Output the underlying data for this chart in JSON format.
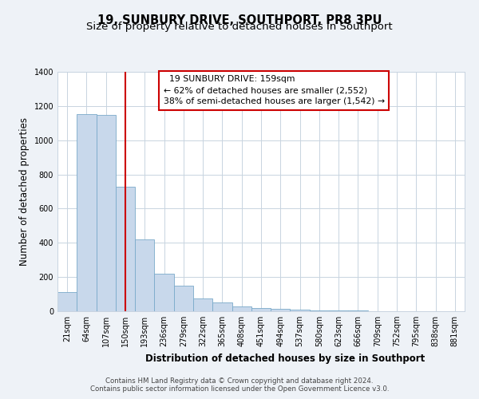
{
  "title": "19, SUNBURY DRIVE, SOUTHPORT, PR8 3PU",
  "subtitle": "Size of property relative to detached houses in Southport",
  "xlabel": "Distribution of detached houses by size in Southport",
  "ylabel": "Number of detached properties",
  "bin_labels": [
    "21sqm",
    "64sqm",
    "107sqm",
    "150sqm",
    "193sqm",
    "236sqm",
    "279sqm",
    "322sqm",
    "365sqm",
    "408sqm",
    "451sqm",
    "494sqm",
    "537sqm",
    "580sqm",
    "623sqm",
    "666sqm",
    "709sqm",
    "752sqm",
    "795sqm",
    "838sqm",
    "881sqm"
  ],
  "bar_values": [
    110,
    1155,
    1150,
    730,
    420,
    220,
    150,
    75,
    50,
    30,
    20,
    15,
    10,
    5,
    3,
    3,
    2,
    1,
    0,
    0,
    1
  ],
  "bar_color": "#c8d8eb",
  "bar_edge_color": "#7aaaca",
  "property_bin_index": 3,
  "annotation_line1": "19 SUNBURY DRIVE: 159sqm",
  "annotation_line2": "← 62% of detached houses are smaller (2,552)",
  "annotation_line3": "38% of semi-detached houses are larger (1,542) →",
  "annotation_box_color": "#ffffff",
  "annotation_box_edge": "#cc0000",
  "red_line_color": "#cc0000",
  "ylim": [
    0,
    1400
  ],
  "yticks": [
    0,
    200,
    400,
    600,
    800,
    1000,
    1200,
    1400
  ],
  "footer_line1": "Contains HM Land Registry data © Crown copyright and database right 2024.",
  "footer_line2": "Contains public sector information licensed under the Open Government Licence v3.0.",
  "background_color": "#eef2f7",
  "plot_bg_color": "#ffffff",
  "grid_color": "#c8d4e0",
  "title_fontsize": 10.5,
  "subtitle_fontsize": 9.5,
  "axis_label_fontsize": 8.5,
  "tick_fontsize": 7,
  "annotation_fontsize": 7.8,
  "footer_fontsize": 6.2
}
